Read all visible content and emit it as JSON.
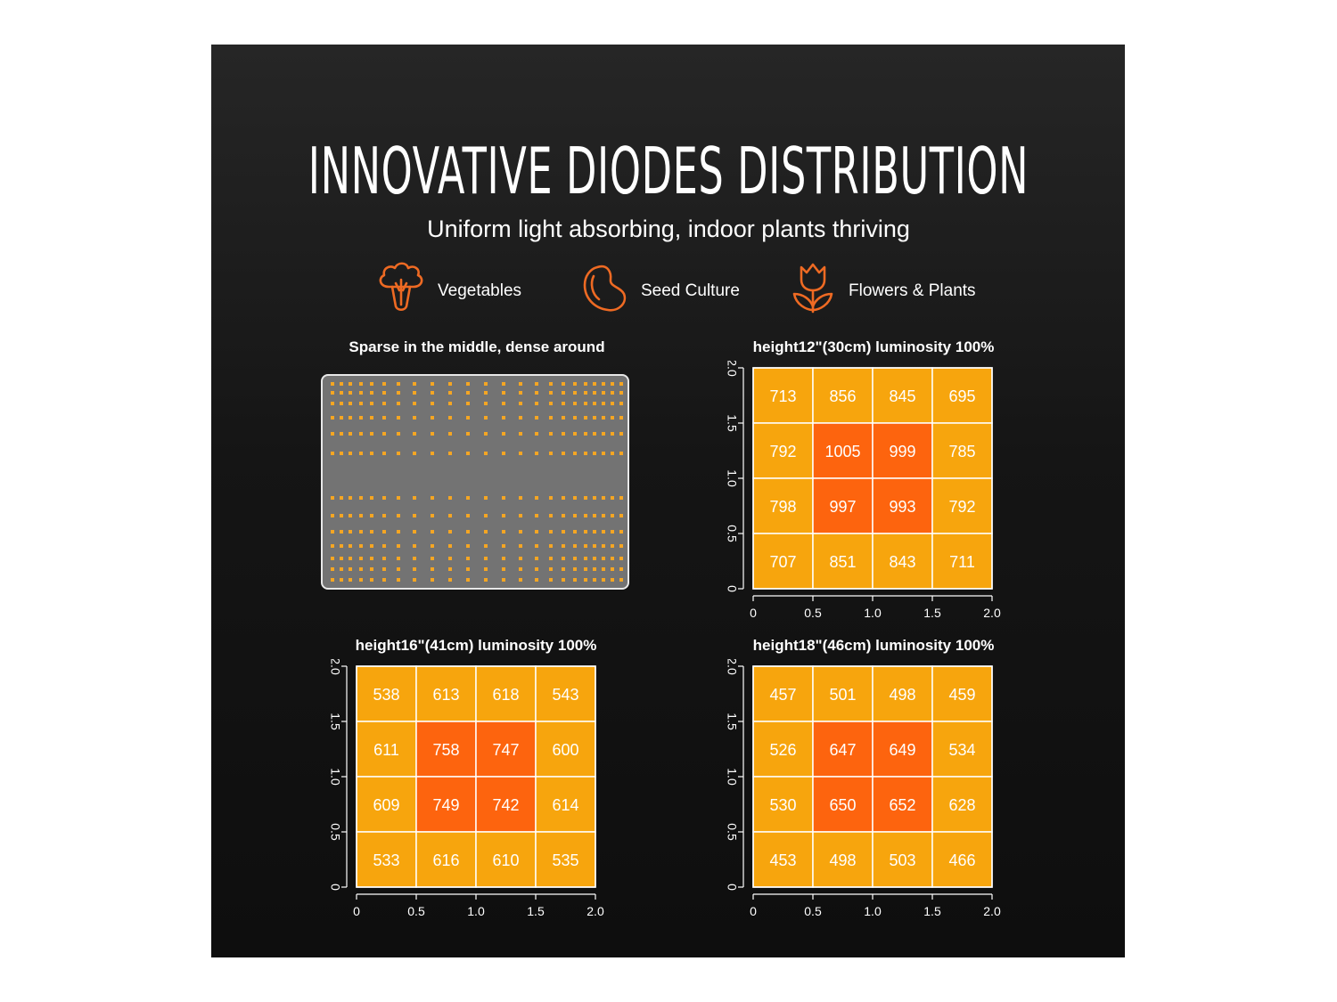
{
  "header": {
    "title": "INNOVATIVE DIODES DISTRIBUTION",
    "subtitle": "Uniform light absorbing, indoor plants thriving"
  },
  "categories": [
    {
      "icon": "broccoli-icon",
      "label": "Vegetables"
    },
    {
      "icon": "bean-icon",
      "label": "Seed Culture"
    },
    {
      "icon": "tulip-icon",
      "label": "Flowers & Plants"
    }
  ],
  "colors": {
    "background": "#1a1a1a",
    "accent": "#ee6a23",
    "cell_low": "#f7a50d",
    "cell_high": "#fd640e",
    "diode": "#f5a623",
    "board": "#737373"
  },
  "diode_panel": {
    "title": "Sparse in the middle, dense around",
    "layout": "diodes sparse in the middle, dense around the edges"
  },
  "chart_data": [
    {
      "type": "heatmap",
      "title": "height12\"(30cm)  luminosity 100%",
      "x_ticks": [
        "0",
        "0.5",
        "1.0",
        "1.5",
        "2.0"
      ],
      "y_ticks": [
        "0",
        "0.5",
        "1.0",
        "1.5",
        "2.0"
      ],
      "xlim": [
        0,
        2
      ],
      "ylim": [
        0,
        2
      ],
      "rows": [
        [
          713,
          856,
          845,
          695
        ],
        [
          792,
          1005,
          999,
          785
        ],
        [
          798,
          997,
          993,
          792
        ],
        [
          707,
          851,
          843,
          711
        ]
      ],
      "highlight_threshold": 900
    },
    {
      "type": "heatmap",
      "title": "height16\"(41cm)  luminosity 100%",
      "x_ticks": [
        "0",
        "0.5",
        "1.0",
        "1.5",
        "2.0"
      ],
      "y_ticks": [
        "0",
        "0.5",
        "1.0",
        "1.5",
        "2.0"
      ],
      "xlim": [
        0,
        2
      ],
      "ylim": [
        0,
        2
      ],
      "rows": [
        [
          538,
          613,
          618,
          543
        ],
        [
          611,
          758,
          747,
          600
        ],
        [
          609,
          749,
          742,
          614
        ],
        [
          533,
          616,
          610,
          535
        ]
      ],
      "highlight_threshold": 700
    },
    {
      "type": "heatmap",
      "title": "height18\"(46cm)  luminosity 100%",
      "x_ticks": [
        "0",
        "0.5",
        "1.0",
        "1.5",
        "2.0"
      ],
      "y_ticks": [
        "0",
        "0.5",
        "1.0",
        "1.5",
        "2.0"
      ],
      "xlim": [
        0,
        2
      ],
      "ylim": [
        0,
        2
      ],
      "rows": [
        [
          457,
          501,
          498,
          459
        ],
        [
          526,
          647,
          649,
          534
        ],
        [
          530,
          650,
          652,
          628
        ],
        [
          453,
          498,
          503,
          466
        ]
      ],
      "highlight_threshold": 640
    }
  ]
}
